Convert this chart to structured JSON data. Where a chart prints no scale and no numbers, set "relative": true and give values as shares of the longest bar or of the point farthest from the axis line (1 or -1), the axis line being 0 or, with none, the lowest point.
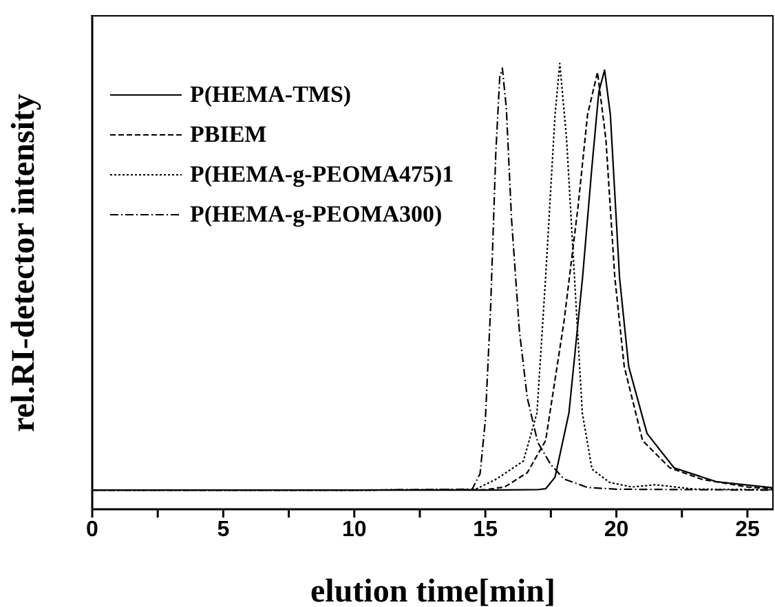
{
  "chart_data": {
    "type": "line",
    "relative": true,
    "xlabel": "elution time[min]",
    "ylabel": "rel.RI-detector intensity",
    "xlim": [
      0,
      26
    ],
    "xticks": [
      0,
      {
        "value": 2.5,
        "label": null
      },
      5,
      {
        "value": 7.5,
        "label": null
      },
      10,
      {
        "value": 12.5,
        "label": null
      },
      15,
      {
        "value": 17.5,
        "label": null
      },
      20,
      {
        "value": 22.5,
        "label": null
      },
      25
    ],
    "legend": "top left",
    "marker": "none",
    "series": [
      {
        "name": "P(HEMA-TMS)",
        "color": "#000000",
        "line_style": "solid",
        "x": [
          0,
          5,
          10,
          15,
          17,
          17.3,
          17.66,
          18.19,
          18.71,
          19.07,
          19.33,
          19.55,
          19.77,
          20.12,
          20.47,
          21.17,
          22.2,
          23.8,
          26
        ],
        "values": [
          0.043,
          0.043,
          0.043,
          0.043,
          0.044,
          0.046,
          0.072,
          0.216,
          0.52,
          0.77,
          0.936,
          0.985,
          0.885,
          0.52,
          0.32,
          0.17,
          0.093,
          0.062,
          0.048
        ]
      },
      {
        "name": "PBIEM",
        "color": "#000000",
        "line_style": "dashed",
        "x": [
          0,
          5,
          10,
          15,
          15.74,
          16.6,
          17.3,
          18.0,
          18.54,
          18.9,
          19.28,
          19.6,
          19.94,
          20.3,
          21.0,
          22.04,
          23.27,
          25.0,
          26
        ],
        "values": [
          0.043,
          0.043,
          0.043,
          0.044,
          0.05,
          0.082,
          0.154,
          0.42,
          0.68,
          0.885,
          0.98,
          0.83,
          0.52,
          0.32,
          0.154,
          0.093,
          0.067,
          0.05,
          0.046
        ]
      },
      {
        "name": "P(HEMA-g-PEOMA475)1",
        "color": "#000000",
        "line_style": "dotted",
        "x": [
          0,
          5,
          10,
          14.6,
          15.4,
          16.45,
          16.97,
          17.3,
          17.66,
          17.84,
          18.1,
          18.45,
          18.7,
          19.07,
          19.75,
          20.6,
          21.5,
          23,
          26
        ],
        "values": [
          0.043,
          0.043,
          0.043,
          0.044,
          0.067,
          0.108,
          0.216,
          0.52,
          0.885,
          1,
          0.83,
          0.47,
          0.216,
          0.09,
          0.06,
          0.05,
          0.055,
          0.045,
          0.044
        ]
      },
      {
        "name": "P(HEMA-g-PEOMA300)",
        "color": "#000000",
        "line_style": "dashed",
        "x": [
          0,
          5,
          10,
          14.5,
          14.8,
          15.0,
          15.2,
          15.4,
          15.55,
          15.65,
          15.8,
          16.0,
          16.3,
          16.6,
          17.0,
          17.5,
          18.0,
          18.9,
          20,
          26
        ],
        "values": [
          0.043,
          0.043,
          0.043,
          0.045,
          0.08,
          0.2,
          0.45,
          0.8,
          0.97,
          0.989,
          0.9,
          0.65,
          0.4,
          0.25,
          0.15,
          0.1,
          0.068,
          0.049,
          0.045,
          0.043
        ]
      }
    ]
  }
}
